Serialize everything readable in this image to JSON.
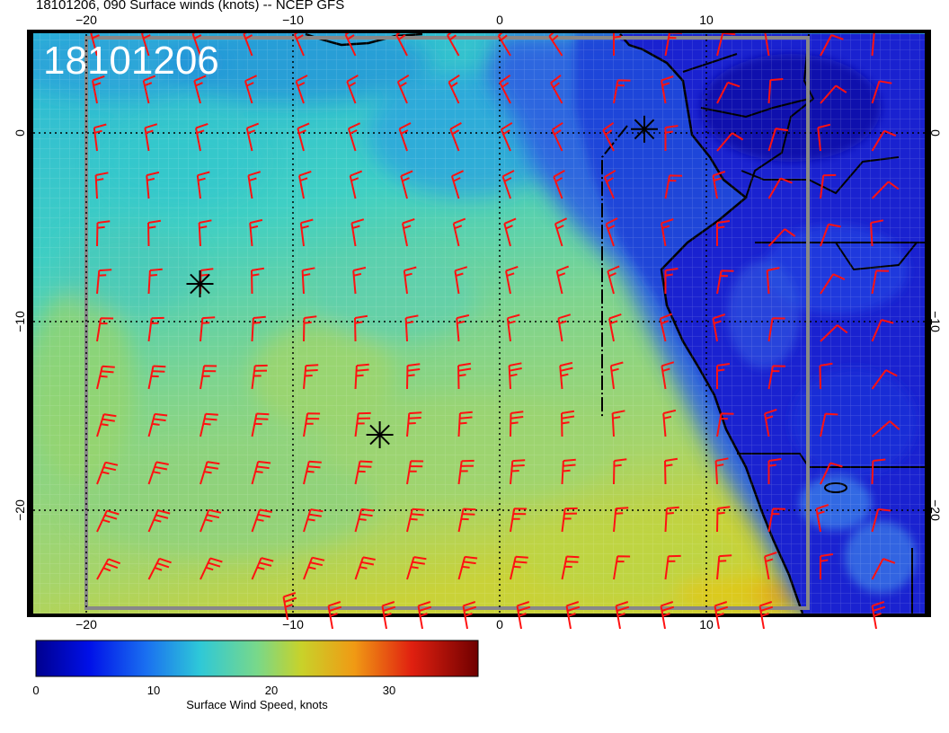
{
  "header": {
    "title": "18101206, 090 Surface winds (knots) -- NCEP GFS"
  },
  "overlay": {
    "date_label": "18101206"
  },
  "axes": {
    "lon_ticks": [
      "−20",
      "−10",
      "0",
      "10"
    ],
    "lat_ticks": [
      "0",
      "−10",
      "−20"
    ],
    "lon_range": [
      -22.5,
      20.5
    ],
    "lat_range": [
      5.0,
      -25.5
    ]
  },
  "colorbar": {
    "ticks": [
      "0",
      "10",
      "20",
      "30"
    ],
    "title": "Surface Wind Speed, knots",
    "range": [
      0,
      37
    ]
  },
  "storm_markers": [
    {
      "lon": 7.0,
      "lat": 0.2
    },
    {
      "lon": -14.5,
      "lat": -8.0
    },
    {
      "lon": -5.8,
      "lat": -16.0
    }
  ],
  "colors": {
    "barb": "#ff1111",
    "land": "#1a1ad8",
    "ocean_low": "#2d86e6",
    "ocean_mid": "#2ec4d6",
    "ocean_high": "#8fd17a",
    "ocean_peak": "#d8d22a",
    "grid_gray": "#888888"
  }
}
